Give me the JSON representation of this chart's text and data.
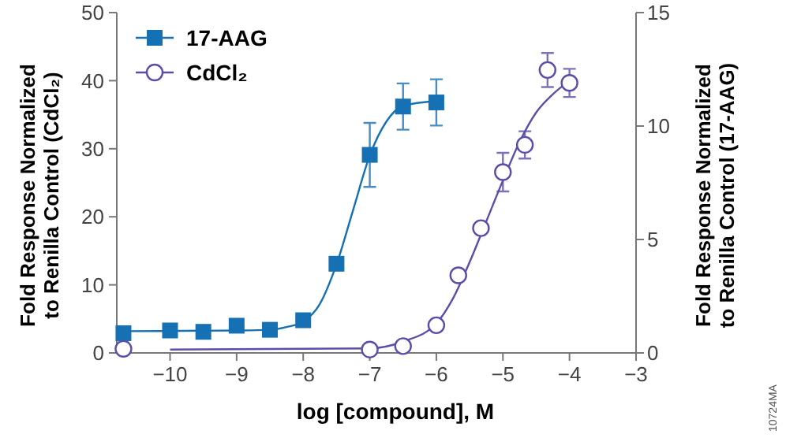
{
  "chart_data": {
    "type": "scatter",
    "xlabel": "log [compound], M",
    "ylabel": "Fold Response Normalized\nto Renilla Control (CdCl₂)",
    "y2label": "Fold Response Normalized\nto Renilla Control (17-AAG)",
    "annotations": [
      "10724MA"
    ],
    "xlim": [
      -10.8,
      -3
    ],
    "xticks": [
      -10,
      -9,
      -8,
      -7,
      -6,
      -5,
      -4,
      -3
    ],
    "ylim": [
      0,
      50
    ],
    "yticks": [
      0,
      10,
      20,
      30,
      40,
      50
    ],
    "y2lim": [
      0,
      15
    ],
    "y2ticks": [
      0,
      5,
      10,
      15
    ],
    "legend": "top left",
    "grid": false,
    "series": [
      {
        "name": "17-AAG",
        "marker": "square",
        "color": "#1670b4",
        "x": [
          -10.7,
          -10,
          -9.5,
          -9,
          -8.5,
          -8,
          -7.5,
          -7,
          -6.5,
          -6
        ],
        "values": [
          2.9,
          3.3,
          3.1,
          4.0,
          3.4,
          4.8,
          13.1,
          29.1,
          36.2,
          36.8
        ],
        "errors": [
          null,
          null,
          null,
          null,
          null,
          null,
          null,
          4.7,
          3.4,
          3.4
        ]
      },
      {
        "name": "CdCl₂",
        "marker": "circle",
        "axis": "y2",
        "color": "#5a4fa8",
        "x": [
          -10.7,
          -7,
          -6.5,
          -6,
          -5.67,
          -5.33,
          -5,
          -4.67,
          -4.33,
          -4
        ],
        "values": [
          0.18,
          0.15,
          0.3,
          1.22,
          3.42,
          5.5,
          7.97,
          9.17,
          12.47,
          11.9
        ],
        "errors": [
          null,
          null,
          null,
          null,
          null,
          null,
          0.85,
          0.6,
          0.75,
          0.62
        ]
      },
      {
        "type": "line",
        "color": "#1670b4",
        "marker": "none",
        "x": [
          -10.7,
          -9,
          -8.5,
          -8.25,
          -8,
          -7.75,
          -7.5,
          -7.25,
          -7,
          -6.75,
          -6.5,
          -6
        ],
        "values": [
          3.2,
          3.3,
          3.4,
          3.8,
          4.6,
          7.2,
          13,
          21,
          29,
          34,
          36.3,
          37
        ]
      },
      {
        "type": "line",
        "axis": "y2",
        "color": "#5a4fa8",
        "marker": "none",
        "x": [
          -10,
          -7,
          -6.5,
          -6,
          -5.75,
          -5.5,
          -5.25,
          -5,
          -4.75,
          -4.5,
          -4.25,
          -4
        ],
        "values": [
          0.15,
          0.2,
          0.5,
          1.3,
          2.4,
          4.0,
          5.8,
          7.6,
          9.3,
          10.6,
          11.4,
          12.0
        ]
      }
    ]
  }
}
